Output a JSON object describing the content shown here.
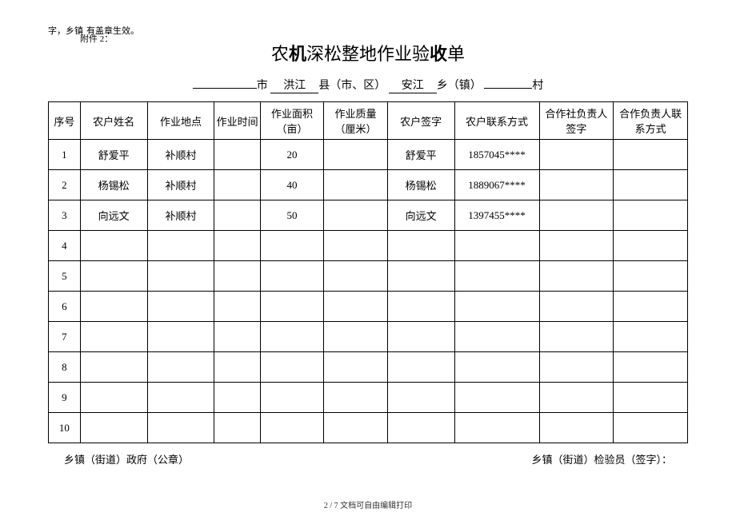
{
  "top_note_left": "字，乡镇",
  "top_note_right": "有盖章生效。",
  "attachment_label": "附件 2：",
  "title_parts": {
    "p1": "农",
    "p2": "机",
    "p3": "深松整地作",
    "p4": "业验",
    "p5": "收",
    "p6": "单"
  },
  "subtitle": {
    "city_val": "",
    "city_lbl": "市",
    "county_val": "洪江",
    "county_lbl": "县（市、区）",
    "town_val": "安江",
    "town_lbl": "乡（镇）",
    "village_val": "",
    "village_lbl": "村"
  },
  "columns": {
    "seq": "序号",
    "name": "农户姓名",
    "loc": "作业地点",
    "time": "作业时间",
    "area": "作业面积（亩）",
    "qual": "作业质量（厘米）",
    "sign": "农户签字",
    "contact": "农户联系方式",
    "coop_sign": "合作社负责人签字",
    "coop_contact": "合作负责人联系方式"
  },
  "rows": [
    {
      "seq": "1",
      "name": "舒爱平",
      "loc": "补顺村",
      "time": "",
      "area": "20",
      "qual": "",
      "sign": "舒爱平",
      "contact": "1857045****",
      "coop_sign": "",
      "coop_contact": ""
    },
    {
      "seq": "2",
      "name": "杨锡松",
      "loc": "补顺村",
      "time": "",
      "area": "40",
      "qual": "",
      "sign": "杨锡松",
      "contact": "1889067****",
      "coop_sign": "",
      "coop_contact": ""
    },
    {
      "seq": "3",
      "name": "向远文",
      "loc": "补顺村",
      "time": "",
      "area": "50",
      "qual": "",
      "sign": "向远文",
      "contact": "1397455****",
      "coop_sign": "",
      "coop_contact": ""
    },
    {
      "seq": "4",
      "name": "",
      "loc": "",
      "time": "",
      "area": "",
      "qual": "",
      "sign": "",
      "contact": "",
      "coop_sign": "",
      "coop_contact": ""
    },
    {
      "seq": "5",
      "name": "",
      "loc": "",
      "time": "",
      "area": "",
      "qual": "",
      "sign": "",
      "contact": "",
      "coop_sign": "",
      "coop_contact": ""
    },
    {
      "seq": "6",
      "name": "",
      "loc": "",
      "time": "",
      "area": "",
      "qual": "",
      "sign": "",
      "contact": "",
      "coop_sign": "",
      "coop_contact": ""
    },
    {
      "seq": "7",
      "name": "",
      "loc": "",
      "time": "",
      "area": "",
      "qual": "",
      "sign": "",
      "contact": "",
      "coop_sign": "",
      "coop_contact": ""
    },
    {
      "seq": "8",
      "name": "",
      "loc": "",
      "time": "",
      "area": "",
      "qual": "",
      "sign": "",
      "contact": "",
      "coop_sign": "",
      "coop_contact": ""
    },
    {
      "seq": "9",
      "name": "",
      "loc": "",
      "time": "",
      "area": "",
      "qual": "",
      "sign": "",
      "contact": "",
      "coop_sign": "",
      "coop_contact": ""
    },
    {
      "seq": "10",
      "name": "",
      "loc": "",
      "time": "",
      "area": "",
      "qual": "",
      "sign": "",
      "contact": "",
      "coop_sign": "",
      "coop_contact": ""
    }
  ],
  "footer_left": "乡镇（街道）政府（公章）",
  "footer_right": "乡镇（街道）检验员（签字）：",
  "page_num": "2 / 7 文档可自由编辑打印"
}
